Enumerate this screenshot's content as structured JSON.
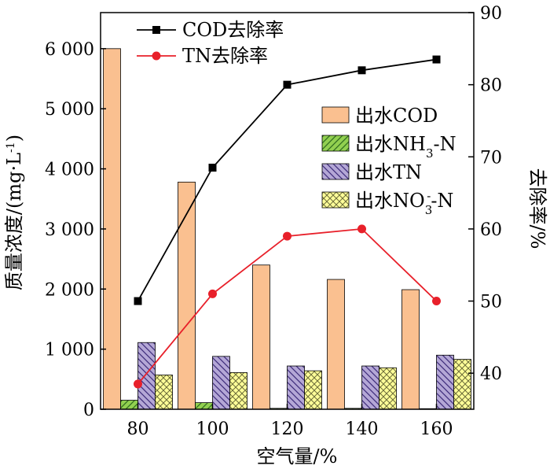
{
  "chart_data": {
    "type": "bar",
    "categories": [
      "80",
      "100",
      "120",
      "140",
      "160"
    ],
    "xlabel": "空气量/%",
    "ylabel": "质量浓度/(mg·L",
    "ylabel_sup": "-1",
    "ylabel_end": ")",
    "y2label": "去除率/%",
    "ylim": [
      0,
      6600
    ],
    "y2lim": [
      35,
      90
    ],
    "y_ticks": [
      0,
      1000,
      2000,
      3000,
      4000,
      5000,
      6000
    ],
    "y_tick_labels": [
      "0",
      "1 000",
      "2 000",
      "3 000",
      "4 000",
      "5 000",
      "6 000"
    ],
    "y2_ticks": [
      40,
      50,
      60,
      70,
      80,
      90
    ],
    "y2_tick_labels": [
      "40",
      "50",
      "60",
      "70",
      "80",
      "90"
    ],
    "bar_series": [
      {
        "name": "出水COD",
        "legend_main": "出水COD",
        "legend_sub": "",
        "legend_rest": "",
        "sub_type": "",
        "color": "#FAC090",
        "pattern": "solid",
        "values": [
          6000,
          3780,
          2400,
          2160,
          1990
        ]
      },
      {
        "name": "出水NH3-N",
        "legend_main": "出水NH",
        "legend_sub": "3",
        "legend_rest": "-N",
        "sub_type": "sub",
        "color": "#92D050",
        "pattern": "hatch-right",
        "values": [
          150,
          110,
          15,
          15,
          10
        ]
      },
      {
        "name": "出水TN",
        "legend_main": "出水TN",
        "legend_sub": "",
        "legend_rest": "",
        "sub_type": "",
        "color": "#B4A7D6",
        "pattern": "hatch-left",
        "values": [
          1110,
          880,
          720,
          720,
          900
        ]
      },
      {
        "name": "出水NO3--N",
        "legend_main": "出水NO",
        "legend_sub": "3",
        "legend_sup": "-",
        "legend_rest": "-N",
        "sub_type": "subsup",
        "color": "#FFFF99",
        "pattern": "crosshatch",
        "values": [
          570,
          610,
          640,
          690,
          830
        ]
      }
    ],
    "line_series": [
      {
        "name": "COD去除率",
        "color": "#000000",
        "marker": "square",
        "values": [
          50,
          68.5,
          80,
          82,
          83.5
        ]
      },
      {
        "name": "TN去除率",
        "color": "#E8202A",
        "marker": "circle",
        "values": [
          38.5,
          51,
          59,
          60,
          50
        ]
      }
    ],
    "legend_placement": "top-right",
    "grid": false
  }
}
